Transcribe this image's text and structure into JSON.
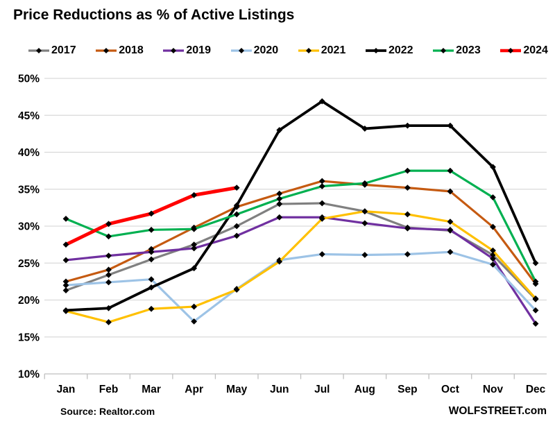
{
  "title": "Price Reductions as % of Active Listings",
  "source": "Source: Realtor.com",
  "watermark": "WOLFSTREET.com",
  "chart_data": {
    "type": "line",
    "title": "Price Reductions as % of Active Listings",
    "categories": [
      "Jan",
      "Feb",
      "Mar",
      "Apr",
      "May",
      "Jun",
      "Jul",
      "Aug",
      "Sep",
      "Oct",
      "Nov",
      "Dec"
    ],
    "y_ticks": [
      10,
      15,
      20,
      25,
      30,
      35,
      40,
      45,
      50
    ],
    "y_tick_format": "percent",
    "ylim": [
      10,
      50
    ],
    "grid": "horizontal",
    "legend_position": "top",
    "marker": "black-diamond",
    "gridline_color": "#D9D9D9",
    "axis_color": "#BFBFBF",
    "series": [
      {
        "name": "2017",
        "color": "#808080",
        "width": 3.2,
        "values": [
          21.3,
          23.4,
          25.5,
          27.5,
          30.0,
          33.0,
          33.1,
          32.0,
          29.8,
          29.4,
          26.1,
          20.1
        ]
      },
      {
        "name": "2018",
        "color": "#C55A11",
        "width": 3.2,
        "values": [
          22.5,
          24.1,
          26.9,
          29.8,
          32.6,
          34.4,
          36.1,
          35.6,
          35.2,
          34.7,
          29.9,
          22.2
        ]
      },
      {
        "name": "2019",
        "color": "#7030A0",
        "width": 3.2,
        "values": [
          25.4,
          26.0,
          26.5,
          27.0,
          28.7,
          31.2,
          31.2,
          30.4,
          29.7,
          29.5,
          25.6,
          16.8
        ]
      },
      {
        "name": "2020",
        "color": "#9DC3E6",
        "width": 3.2,
        "values": [
          22.0,
          22.4,
          22.8,
          17.1,
          21.5,
          25.4,
          26.2,
          26.1,
          26.2,
          26.5,
          24.8,
          18.6
        ]
      },
      {
        "name": "2021",
        "color": "#FFC000",
        "width": 3.2,
        "values": [
          18.5,
          17.0,
          18.8,
          19.1,
          21.4,
          25.2,
          31.0,
          32.0,
          31.6,
          30.6,
          26.7,
          20.2
        ]
      },
      {
        "name": "2022",
        "color": "#000000",
        "width": 3.8,
        "values": [
          18.6,
          18.9,
          21.7,
          24.3,
          32.8,
          43.0,
          46.9,
          43.2,
          43.6,
          43.6,
          38.0,
          25.0
        ]
      },
      {
        "name": "2023",
        "color": "#00B050",
        "width": 3.2,
        "values": [
          31.0,
          28.6,
          29.5,
          29.6,
          31.6,
          33.7,
          35.4,
          35.8,
          37.5,
          37.5,
          33.9,
          22.5
        ]
      },
      {
        "name": "2024",
        "color": "#FF0000",
        "width": 5.0,
        "values": [
          27.5,
          30.3,
          31.7,
          34.2,
          35.2,
          null,
          null,
          null,
          null,
          null,
          null,
          null
        ]
      }
    ]
  }
}
